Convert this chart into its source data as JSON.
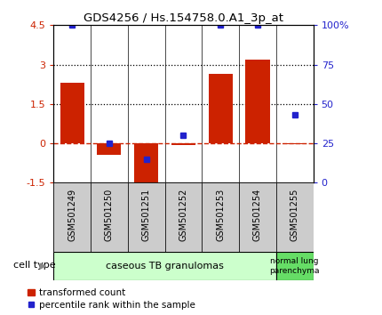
{
  "title": "GDS4256 / Hs.154758.0.A1_3p_at",
  "samples": [
    "GSM501249",
    "GSM501250",
    "GSM501251",
    "GSM501252",
    "GSM501253",
    "GSM501254",
    "GSM501255"
  ],
  "transformed_counts": [
    2.3,
    -0.45,
    -1.65,
    -0.08,
    2.65,
    3.2,
    -0.02
  ],
  "percentile_ranks": [
    100,
    25,
    15,
    30,
    100,
    100,
    43
  ],
  "ylim_left": [
    -1.5,
    4.5
  ],
  "ylim_right": [
    0,
    100
  ],
  "left_ticks": [
    -1.5,
    0,
    1.5,
    3,
    4.5
  ],
  "right_ticks": [
    0,
    25,
    50,
    75,
    100
  ],
  "right_tick_labels": [
    "0",
    "25",
    "50",
    "75",
    "100%"
  ],
  "hlines": [
    1.5,
    3.0
  ],
  "bar_color": "#cc2200",
  "dot_color": "#2222cc",
  "zero_line_color": "#cc2200",
  "group1_label": "caseous TB granulomas",
  "group1_color": "#ccffcc",
  "group1_count": 6,
  "group2_label": "normal lung\nparenchyma",
  "group2_color": "#66dd66",
  "group2_count": 1,
  "legend_bar_label": "transformed count",
  "legend_dot_label": "percentile rank within the sample",
  "cell_type_label": "cell type",
  "sample_box_color": "#cccccc"
}
